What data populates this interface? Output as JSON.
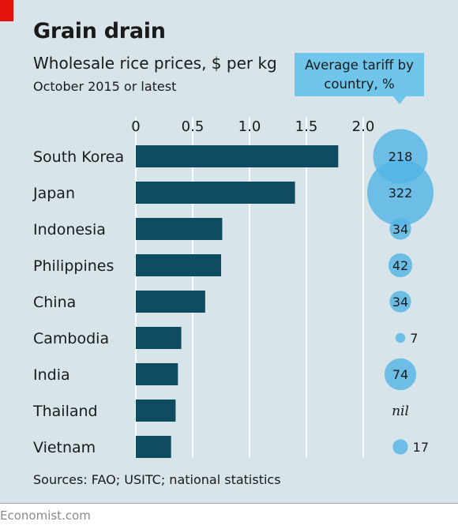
{
  "header": {
    "title": "Grain drain",
    "subtitle": "Wholesale rice prices, $ per kg",
    "note": "October 2015 or latest"
  },
  "tariff_label": "Average tariff by country, %",
  "source": "Sources: FAO; USITC; national statistics",
  "credit": "Economist.com",
  "colors": {
    "background": "#d7e4ea",
    "bar": "#0f4c62",
    "bubble": "#4fb3e4",
    "accent_red": "#e3120b"
  },
  "chart_data": {
    "type": "bar",
    "orientation": "horizontal",
    "title": "Grain drain",
    "subtitle": "Wholesale rice prices, $ per kg",
    "categories": [
      "South Korea",
      "Japan",
      "Indonesia",
      "Philippines",
      "China",
      "Cambodia",
      "India",
      "Thailand",
      "Vietnam"
    ],
    "values": [
      1.78,
      1.4,
      0.76,
      0.75,
      0.61,
      0.4,
      0.37,
      0.35,
      0.31
    ],
    "xlim": [
      0,
      2.0
    ],
    "xticks": [
      0,
      0.5,
      1.0,
      1.5,
      2.0
    ],
    "xtick_labels": [
      "0",
      "0.5",
      "1.0",
      "1.5",
      "2.0"
    ],
    "grid": true,
    "tariffs": {
      "name": "Average tariff by country, %",
      "labels": [
        "218",
        "322",
        "34",
        "42",
        "34",
        "7",
        "74",
        "nil",
        "17"
      ],
      "values": [
        218,
        322,
        34,
        42,
        34,
        7,
        74,
        null,
        17
      ]
    }
  }
}
